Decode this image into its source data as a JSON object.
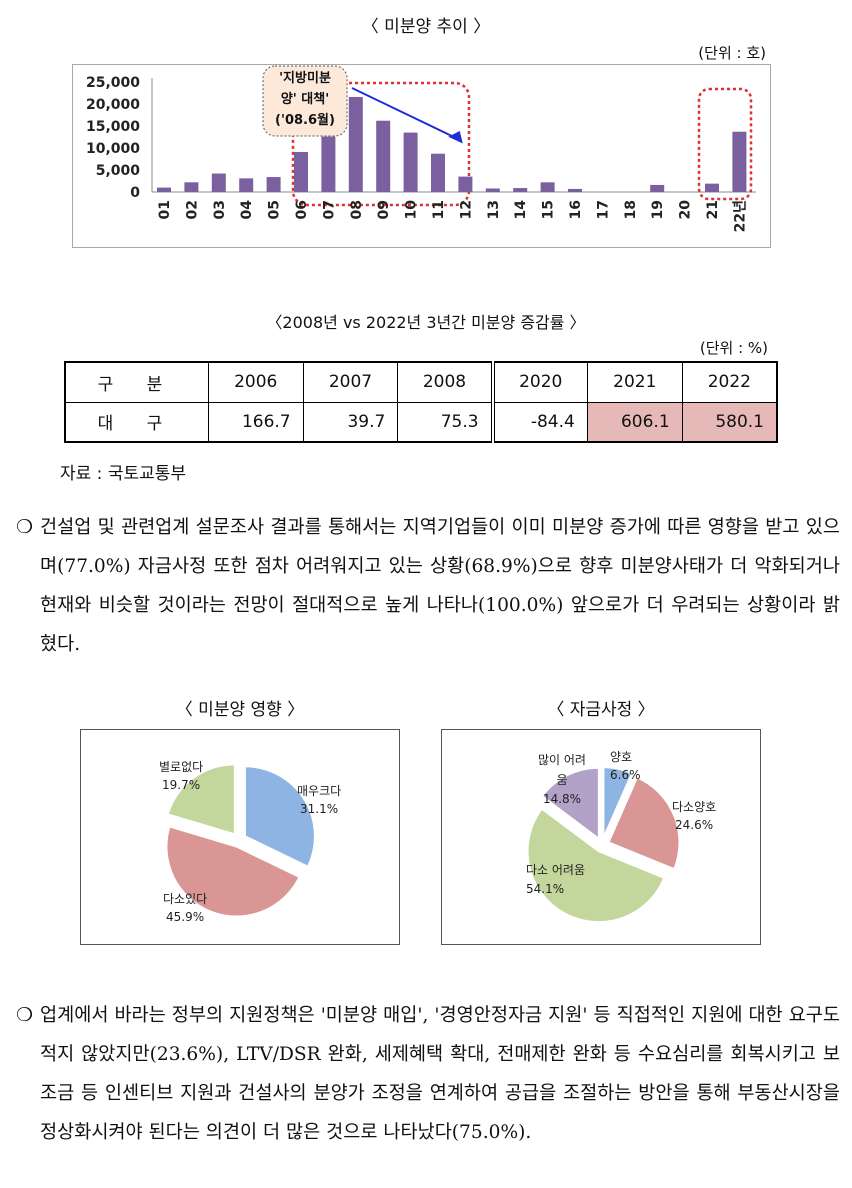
{
  "bar_chart": {
    "title": "〈 미분양 추이 〉",
    "unit": "(단위 : 호)",
    "annotation": {
      "lines": [
        "'지방미분",
        "양' 대책'",
        "('08.6월)"
      ]
    },
    "chart_data": {
      "type": "bar",
      "categories": [
        "01",
        "02",
        "03",
        "04",
        "05",
        "06",
        "07",
        "08",
        "09",
        "10",
        "11",
        "12",
        "13",
        "14",
        "15",
        "16",
        "17",
        "18",
        "19",
        "20",
        "21",
        "22년"
      ],
      "values": [
        1000,
        2200,
        4200,
        3100,
        3400,
        9100,
        12600,
        21600,
        16200,
        13500,
        8700,
        3500,
        800,
        900,
        2200,
        700,
        0,
        0,
        1600,
        0,
        1900,
        13700
      ],
      "y_ticks": [
        "25,000",
        "20,000",
        "15,000",
        "10,000",
        "5,000",
        "0"
      ],
      "ylim": [
        0,
        25000
      ],
      "bar_color": "#7b60a0"
    }
  },
  "table": {
    "title": "〈2008년 vs 2022년 3년간 미분양 증감률 〉",
    "unit": "(단위 : %)",
    "header": [
      "구 분",
      "2006",
      "2007",
      "2008",
      "2020",
      "2021",
      "2022"
    ],
    "row_label": "대 구",
    "values": [
      "166.7",
      "39.7",
      "75.3",
      "-84.4",
      "606.1",
      "580.1"
    ],
    "highlight_color": "#e6b9b8"
  },
  "source": "자료 : 국토교통부",
  "paragraph1": {
    "bullet": "❍",
    "text": "건설업 및 관련업계 설문조사 결과를 통해서는 지역기업들이 이미 미분양 증가에 따른 영향을 받고 있으며(77.0%) 자금사정 또한 점차 어려워지고 있는 상황(68.9%)으로 향후 미분양사태가 더 악화되거나 현재와 비슷할 것이라는 전망이 절대적으로 높게 나타나(100.0%) 앞으로가 더 우려되는 상황이라 밝혔다."
  },
  "pie1": {
    "title": "〈 미분양 영향 〉",
    "chart_data": {
      "type": "pie",
      "slices": [
        {
          "label": "매우크다",
          "value": 31.1,
          "pct": "31.1%",
          "color": "#8eb4e3"
        },
        {
          "label": "다소있다",
          "value": 45.9,
          "pct": "45.9%",
          "color": "#d99694"
        },
        {
          "label": "별로없다",
          "value": 19.7,
          "pct": "19.7%",
          "color": "#c3d69b"
        }
      ]
    }
  },
  "pie2": {
    "title": "〈 자금사정 〉",
    "chart_data": {
      "type": "pie",
      "slices": [
        {
          "label": "양호",
          "value": 6.6,
          "pct": "6.6%",
          "color": "#8eb4e3"
        },
        {
          "label": "다소양호",
          "value": 24.6,
          "pct": "24.6%",
          "color": "#d99694"
        },
        {
          "label": "다소 어려움",
          "value": 54.1,
          "pct": "54.1%",
          "color": "#c3d69b"
        },
        {
          "label": "많이 어려움",
          "value": 14.8,
          "pct": "14.8%",
          "color": "#b3a2c7"
        }
      ]
    }
  },
  "paragraph2": {
    "bullet": "❍",
    "text": "업계에서 바라는 정부의 지원정책은 '미분양 매입', '경영안정자금 지원' 등 직접적인 지원에 대한 요구도 적지 않았지만(23.6%), LTV/DSR 완화, 세제혜택 확대, 전매제한 완화 등 수요심리를 회복시키고 보조금 등 인센티브 지원과 건설사의 분양가 조정을 연계하여 공급을 조절하는 방안을 통해 부동산시장을 정상화시켜야 된다는 의견이 더 많은 것으로 나타났다(75.0%)."
  }
}
